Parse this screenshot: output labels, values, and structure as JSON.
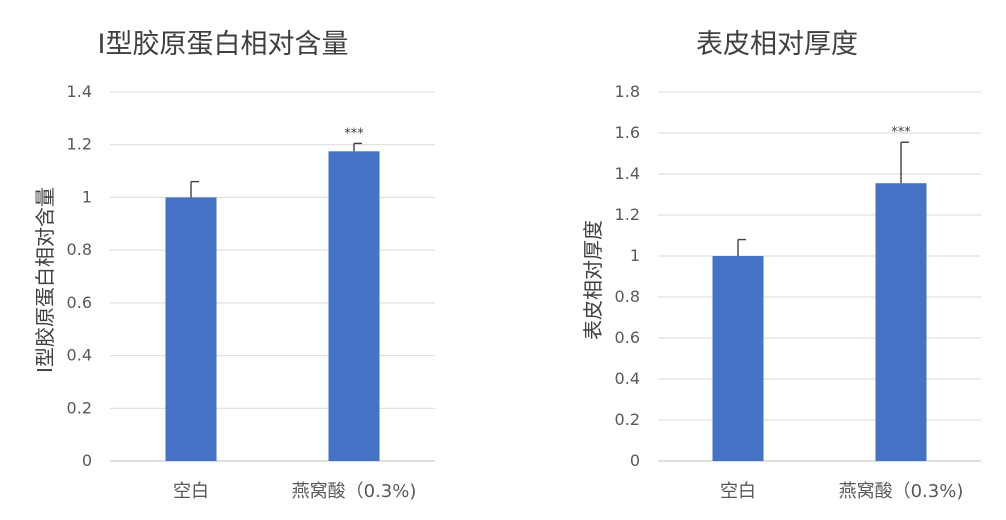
{
  "chart_data": [
    {
      "type": "bar",
      "title": "Ⅰ型胶原蛋白相对含量",
      "ylabel": "Ⅰ型胶原蛋白相对含量",
      "xlabel": "",
      "categories": [
        "空白",
        "燕窝酸（0.3%)"
      ],
      "values": [
        1.0,
        1.175
      ],
      "error": [
        0.06,
        0.03
      ],
      "annotations": [
        "",
        "***"
      ],
      "ylim": [
        0,
        1.4
      ],
      "yticks": [
        0,
        0.2,
        0.4,
        0.6,
        0.8,
        1,
        1.2,
        1.4
      ],
      "ytick_labels": [
        "0",
        "0.2",
        "0.4",
        "0.6",
        "0.8",
        "1",
        "1.2",
        "1.4"
      ],
      "grid": true,
      "legend": "none",
      "bar_color": "#4472c4"
    },
    {
      "type": "bar",
      "title": "表皮相对厚度",
      "ylabel": "表皮相对厚度",
      "xlabel": "",
      "categories": [
        "空白",
        "燕窝酸（0.3%)"
      ],
      "values": [
        1.0,
        1.355
      ],
      "error": [
        0.08,
        0.2
      ],
      "annotations": [
        "",
        "***"
      ],
      "ylim": [
        0,
        1.8
      ],
      "yticks": [
        0,
        0.2,
        0.4,
        0.6,
        0.8,
        1,
        1.2,
        1.4,
        1.6,
        1.8
      ],
      "ytick_labels": [
        "0",
        "0.2",
        "0.4",
        "0.6",
        "0.8",
        "1",
        "1.2",
        "1.4",
        "1.6",
        "1.8"
      ],
      "grid": true,
      "legend": "none",
      "bar_color": "#4472c4"
    }
  ]
}
